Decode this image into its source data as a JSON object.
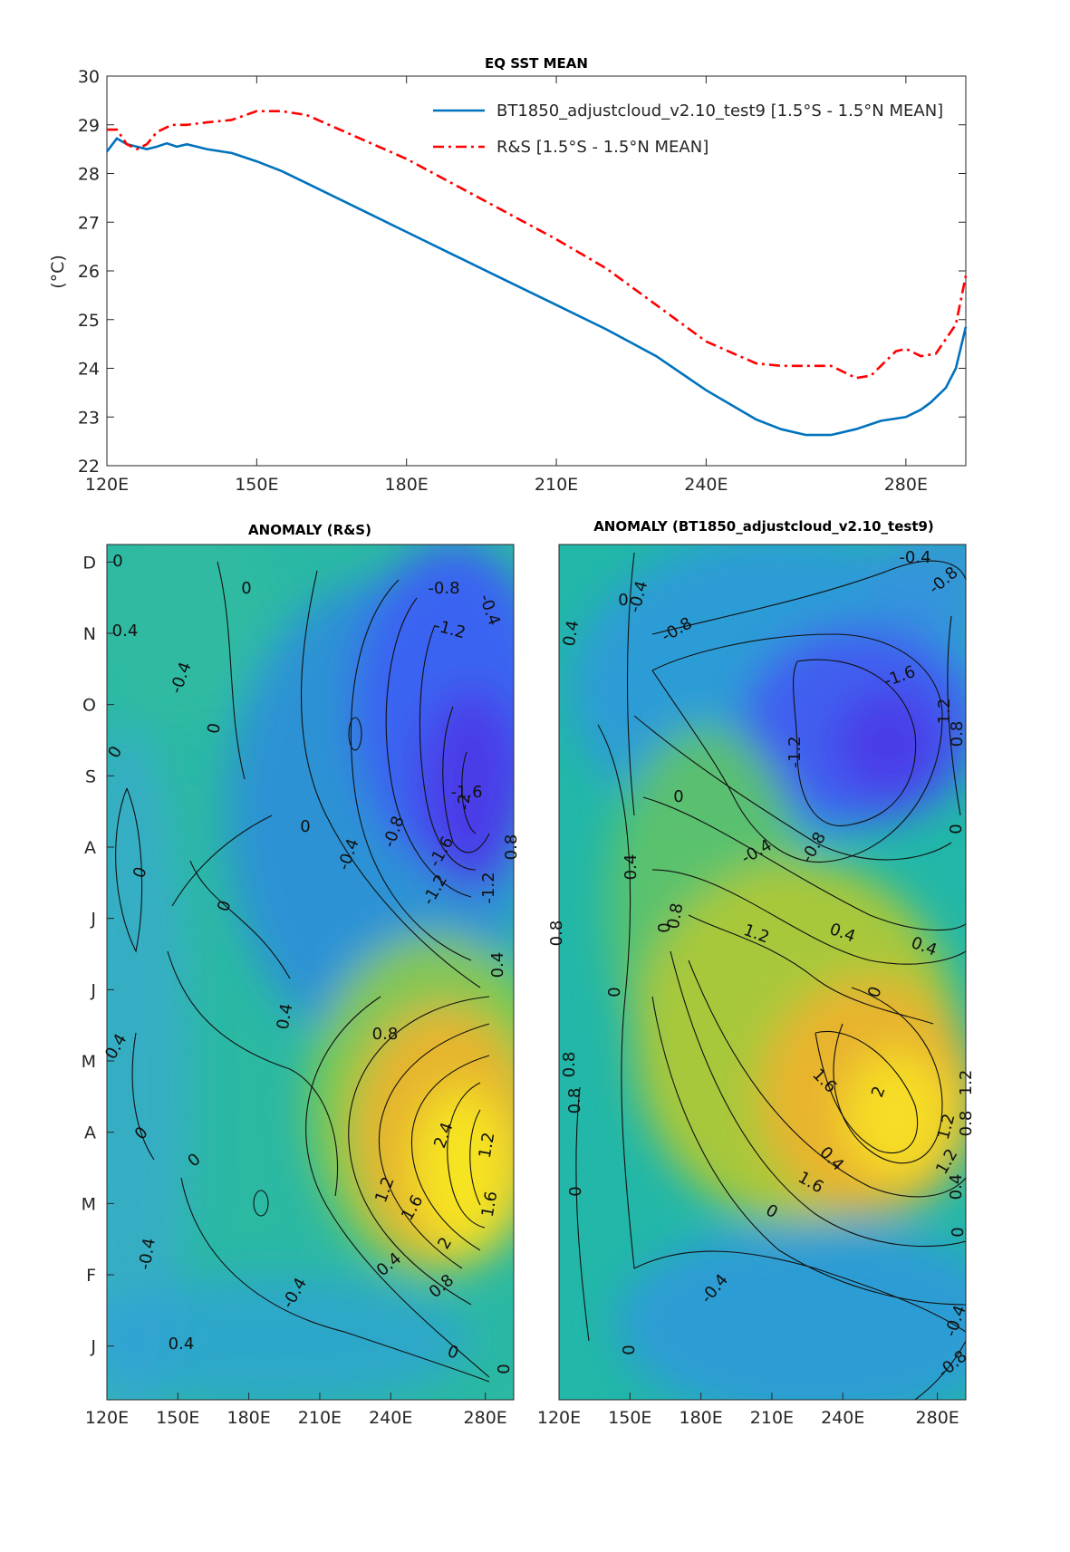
{
  "chart_data": [
    {
      "type": "line",
      "title": "EQ SST MEAN",
      "ylabel": "(°C)",
      "xlabel": "",
      "xlim": [
        120,
        292
      ],
      "ylim": [
        22,
        30
      ],
      "xticks": [
        120,
        150,
        180,
        210,
        240,
        280
      ],
      "xtick_labels": [
        "120E",
        "150E",
        "180E",
        "210E",
        "240E",
        "280E"
      ],
      "yticks": [
        22,
        23,
        24,
        25,
        26,
        27,
        28,
        29,
        30
      ],
      "legend_position": "top-right",
      "series": [
        {
          "name": "BT1850_adjustcloud_v2.10_test9 [1.5°S - 1.5°N MEAN]",
          "color": "#0072BD",
          "style": "solid",
          "x": [
            120,
            122,
            124,
            126,
            128,
            130,
            132,
            134,
            136,
            138,
            140,
            145,
            150,
            155,
            160,
            170,
            180,
            190,
            200,
            210,
            220,
            230,
            240,
            250,
            255,
            260,
            265,
            270,
            275,
            280,
            283,
            285,
            288,
            290,
            292
          ],
          "y": [
            28.45,
            28.72,
            28.6,
            28.55,
            28.5,
            28.55,
            28.62,
            28.55,
            28.6,
            28.55,
            28.5,
            28.42,
            28.25,
            28.05,
            27.8,
            27.3,
            26.8,
            26.3,
            25.8,
            25.3,
            24.8,
            24.25,
            23.55,
            22.95,
            22.75,
            22.63,
            22.63,
            22.75,
            22.92,
            23.0,
            23.15,
            23.3,
            23.6,
            24.0,
            24.85
          ]
        },
        {
          "name": "R&S [1.5°S - 1.5°N MEAN]",
          "color": "#ff0000",
          "style": "dash-dot",
          "x": [
            120,
            122,
            124,
            126,
            128,
            130,
            133,
            136,
            140,
            145,
            150,
            155,
            160,
            170,
            180,
            190,
            200,
            210,
            220,
            230,
            240,
            250,
            255,
            260,
            265,
            270,
            273,
            275,
            278,
            280,
            283,
            286,
            288,
            290,
            292
          ],
          "y": [
            28.9,
            28.9,
            28.6,
            28.5,
            28.6,
            28.85,
            29.0,
            29.0,
            29.05,
            29.1,
            29.28,
            29.28,
            29.2,
            28.75,
            28.3,
            27.75,
            27.2,
            26.65,
            26.05,
            25.3,
            24.55,
            24.1,
            24.05,
            24.05,
            24.05,
            23.8,
            23.85,
            24.05,
            24.35,
            24.4,
            24.25,
            24.3,
            24.6,
            24.9,
            25.9
          ]
        }
      ]
    },
    {
      "type": "heatmap",
      "title": "ANOMALY (R&S)",
      "xlim": [
        120,
        292
      ],
      "xticks": [
        120,
        150,
        180,
        210,
        240,
        280
      ],
      "xtick_labels": [
        "120E",
        "150E",
        "180E",
        "210E",
        "240E",
        "280E"
      ],
      "ytick_labels": [
        "J",
        "F",
        "M",
        "A",
        "M",
        "J",
        "J",
        "A",
        "S",
        "O",
        "N",
        "D"
      ],
      "colormap": "parula",
      "color_range": [
        -2.5,
        2.8
      ],
      "features": [
        {
          "kind": "min",
          "lon": 266,
          "month": 9.2,
          "value": -2.2
        },
        {
          "kind": "max",
          "lon": 266,
          "month": 3.3,
          "value": 2.6
        }
      ],
      "contour_labels": [
        "0",
        "0.4",
        "-0.4",
        "0",
        "-0.8",
        "-1.2",
        "-0.4",
        "0",
        "0",
        "0",
        "-1.6",
        "-2",
        "-0.8",
        "-0.4",
        "0",
        "-1.6",
        "-1.2",
        "0.8",
        "-1.2",
        "0",
        "0.4",
        "0.8",
        "0.4",
        "0.4",
        "2.4",
        "1.2",
        "1.2",
        "1.6",
        "2",
        "1.6",
        "0.4",
        "0.8",
        "-0.4",
        "-0.4",
        "0",
        "0",
        "0",
        "0.4",
        "0"
      ]
    },
    {
      "type": "heatmap",
      "title": "ANOMALY (BT1850_adjustcloud_v2.10_test9)",
      "xlim": [
        120,
        292
      ],
      "xticks": [
        120,
        150,
        180,
        210,
        240,
        280
      ],
      "xtick_labels": [
        "120E",
        "150E",
        "180E",
        "210E",
        "240E",
        "280E"
      ],
      "colormap": "parula",
      "color_range": [
        -2.5,
        2.8
      ],
      "features": [
        {
          "kind": "min",
          "lon": 258,
          "month": 9.8,
          "value": -1.8
        },
        {
          "kind": "max",
          "lon": 255,
          "month": 3.6,
          "value": 2.2
        }
      ],
      "contour_labels": [
        "-0.4",
        "-0.8",
        "0.4",
        "-0.4",
        "0",
        "-0.8",
        "-1.6",
        "-1.2",
        "1.2",
        "0.8",
        "0",
        "0",
        "-0.4",
        "-0.8",
        "0.4",
        "0",
        "0.8",
        "0.4",
        "1.2",
        "0.4",
        "0",
        "0.8",
        "0",
        "1.6",
        "2",
        "1.2",
        "1.2",
        "0.8",
        "0.4",
        "0.8",
        "1.6",
        "1.2",
        "0.8",
        "0",
        "0",
        "0.4",
        "0",
        "-0.4",
        "0",
        "-0.4",
        "-0.8"
      ]
    }
  ]
}
